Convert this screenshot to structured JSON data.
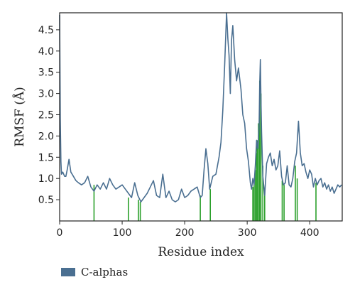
{
  "chart_data": {
    "type": "line",
    "xlabel": "Residue index",
    "ylabel": "RMSF (Å)",
    "xlim": [
      0,
      452
    ],
    "ylim": [
      0,
      4.9
    ],
    "x_ticks": [
      0,
      100,
      200,
      300,
      400
    ],
    "y_ticks": [
      0.5,
      1.0,
      1.5,
      2.0,
      2.5,
      3.0,
      3.5,
      4.0,
      4.5
    ],
    "x_tick_labels": [
      "0",
      "100",
      "200",
      "300",
      "400"
    ],
    "y_tick_labels": [
      "0.5",
      "1.0",
      "1.5",
      "2.0",
      "2.5",
      "3.0",
      "3.5",
      "4.0",
      "4.5"
    ],
    "grid": false,
    "legend_position": "bottom-left",
    "series": [
      {
        "name": "C-alphas",
        "color": "#4a6f91",
        "x": [
          0,
          1,
          2,
          3,
          5,
          8,
          10,
          12,
          15,
          18,
          22,
          26,
          30,
          35,
          40,
          45,
          50,
          55,
          60,
          65,
          70,
          75,
          80,
          85,
          90,
          95,
          100,
          105,
          110,
          115,
          120,
          125,
          130,
          135,
          140,
          145,
          150,
          155,
          160,
          165,
          170,
          175,
          180,
          185,
          190,
          195,
          200,
          205,
          210,
          215,
          220,
          225,
          228,
          231,
          234,
          237,
          240,
          245,
          250,
          255,
          258,
          261,
          264,
          267,
          269,
          271,
          273,
          275,
          277,
          280,
          283,
          286,
          290,
          293,
          296,
          299,
          302,
          305,
          307,
          309,
          311,
          313,
          315,
          317,
          319,
          320,
          321,
          322,
          323,
          325,
          328,
          331,
          334,
          337,
          340,
          343,
          346,
          349,
          352,
          355,
          358,
          361,
          364,
          367,
          370,
          373,
          376,
          379,
          382,
          385,
          388,
          391,
          394,
          397,
          400,
          403,
          406,
          409,
          412,
          415,
          418,
          421,
          424,
          427,
          430,
          433,
          436,
          439,
          442,
          445,
          448,
          451
        ],
        "values": [
          4.85,
          2.4,
          1.4,
          1.1,
          1.15,
          1.05,
          1.05,
          1.2,
          1.45,
          1.15,
          1.05,
          0.95,
          0.9,
          0.85,
          0.9,
          1.05,
          0.8,
          0.7,
          0.85,
          0.75,
          0.9,
          0.75,
          1.0,
          0.85,
          0.75,
          0.8,
          0.85,
          0.75,
          0.65,
          0.55,
          0.9,
          0.6,
          0.45,
          0.55,
          0.65,
          0.8,
          0.95,
          0.6,
          0.55,
          1.1,
          0.55,
          0.7,
          0.5,
          0.45,
          0.5,
          0.75,
          0.55,
          0.6,
          0.7,
          0.75,
          0.8,
          0.55,
          0.6,
          1.2,
          1.7,
          1.35,
          0.75,
          1.05,
          1.1,
          1.5,
          1.85,
          2.6,
          3.7,
          4.9,
          4.3,
          3.9,
          3.0,
          4.25,
          4.6,
          3.8,
          3.3,
          3.6,
          3.1,
          2.5,
          2.3,
          1.7,
          1.4,
          0.9,
          0.75,
          1.0,
          0.85,
          1.3,
          1.9,
          1.7,
          2.2,
          3.2,
          3.8,
          2.9,
          2.1,
          1.05,
          0.6,
          1.35,
          1.5,
          1.6,
          1.3,
          1.45,
          1.2,
          1.3,
          1.65,
          1.05,
          0.85,
          0.9,
          1.3,
          0.85,
          0.8,
          1.0,
          1.4,
          1.6,
          2.35,
          1.6,
          1.3,
          1.35,
          1.15,
          1.0,
          1.2,
          1.1,
          0.8,
          1.0,
          0.85,
          0.95,
          1.0,
          0.8,
          0.9,
          0.75,
          0.85,
          0.7,
          0.8,
          0.65,
          0.75,
          0.85,
          0.8,
          0.85
        ]
      }
    ],
    "markers": {
      "color": "#2ca02c",
      "lines": [
        {
          "x": 55,
          "y": 0.85
        },
        {
          "x": 110,
          "y": 0.55
        },
        {
          "x": 126,
          "y": 0.5
        },
        {
          "x": 129,
          "y": 0.45
        },
        {
          "x": 225,
          "y": 0.6
        },
        {
          "x": 241,
          "y": 0.75
        },
        {
          "x": 309,
          "y": 0.8
        },
        {
          "x": 311,
          "y": 0.9
        },
        {
          "x": 313,
          "y": 1.2
        },
        {
          "x": 315,
          "y": 1.6
        },
        {
          "x": 316,
          "y": 1.9
        },
        {
          "x": 318,
          "y": 2.3
        },
        {
          "x": 320,
          "y": 3.3
        },
        {
          "x": 322,
          "y": 3.0
        },
        {
          "x": 325,
          "y": 1.3
        },
        {
          "x": 328,
          "y": 0.7
        },
        {
          "x": 356,
          "y": 0.95
        },
        {
          "x": 359,
          "y": 0.85
        },
        {
          "x": 377,
          "y": 1.3
        },
        {
          "x": 380,
          "y": 1.0
        },
        {
          "x": 410,
          "y": 0.9
        }
      ]
    }
  }
}
